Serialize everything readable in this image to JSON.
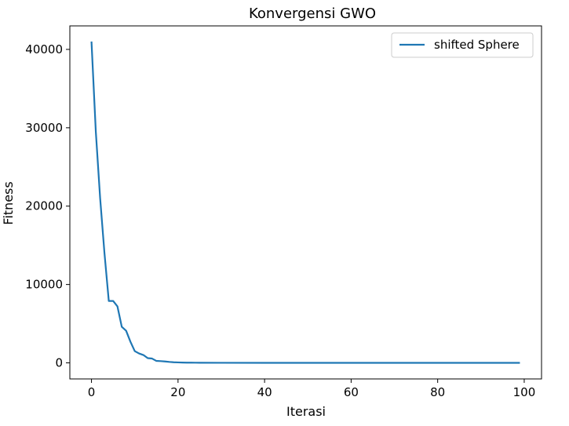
{
  "chart_data": {
    "type": "line",
    "title": "Konvergensi GWO",
    "xlabel": "Iterasi",
    "ylabel": "Fitness",
    "xlim": [
      -5,
      104
    ],
    "ylim": [
      -2050,
      43000
    ],
    "xticks": [
      0,
      20,
      40,
      60,
      80,
      100
    ],
    "yticks": [
      0,
      10000,
      20000,
      30000,
      40000
    ],
    "grid": false,
    "legend_position": "upper right",
    "series": [
      {
        "name": "shifted Sphere",
        "color": "#1f77b4",
        "x": [
          0,
          1,
          2,
          3,
          4,
          5,
          6,
          7,
          8,
          9,
          10,
          11,
          12,
          13,
          14,
          15,
          16,
          17,
          18,
          19,
          20,
          21,
          22,
          23,
          24,
          25,
          30,
          40,
          50,
          60,
          70,
          80,
          90,
          99
        ],
        "y": [
          41000,
          29500,
          21000,
          14000,
          7900,
          7900,
          7200,
          4600,
          4100,
          2700,
          1500,
          1200,
          1000,
          600,
          550,
          250,
          220,
          180,
          120,
          80,
          60,
          40,
          30,
          25,
          20,
          15,
          10,
          5,
          3,
          2,
          1,
          1,
          0,
          0
        ]
      }
    ]
  }
}
